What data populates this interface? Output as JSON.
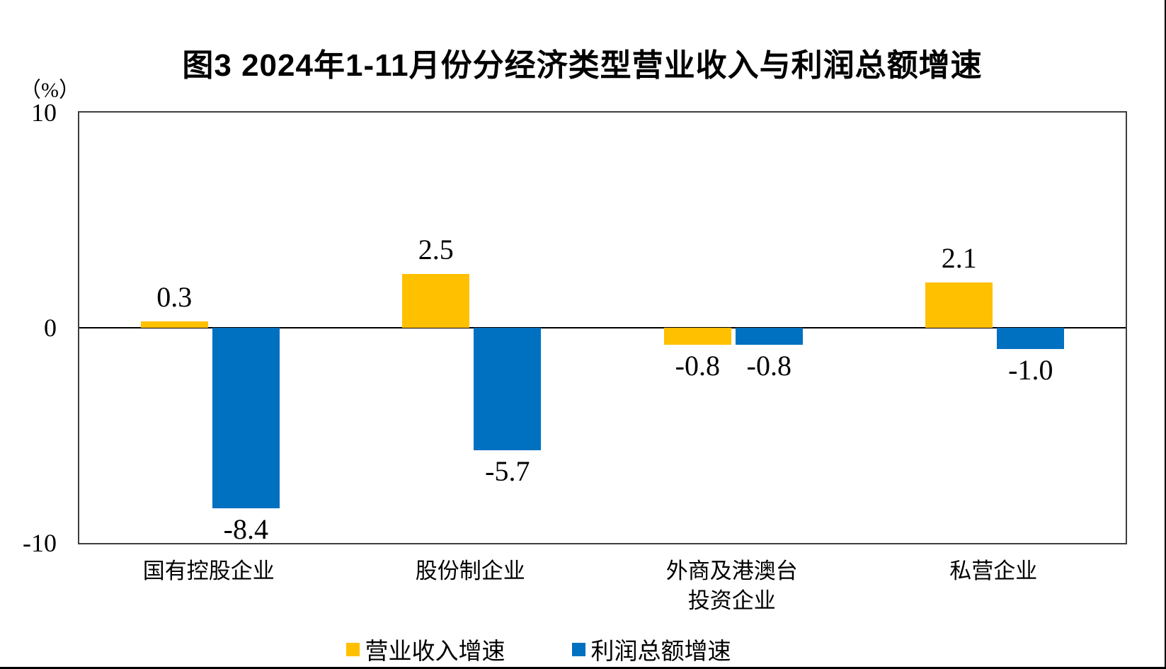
{
  "title": "图3 2024年1-11月份分经济类型营业收入与利润总额增速",
  "unit_label": "（%）",
  "chart_data": {
    "type": "bar",
    "title": "图3 2024年1-11月份分经济类型营业收入与利润总额增速",
    "categories": [
      "国有控股企业",
      "股份制企业",
      "外商及港澳台\n投资企业",
      "私营企业"
    ],
    "series": [
      {
        "name": "营业收入增速",
        "color": "#FFC000",
        "values": [
          0.3,
          2.5,
          -0.8,
          2.1
        ]
      },
      {
        "name": "利润总额增速",
        "color": "#0070C0",
        "values": [
          -8.4,
          -5.7,
          -0.8,
          -1.0
        ]
      }
    ],
    "data_labels": [
      "0.3",
      "2.5",
      "-0.8",
      "2.1",
      "-8.4",
      "-5.7",
      "-0.8",
      "-1.0"
    ],
    "ylabel": "（%）",
    "ylim": [
      -10,
      10
    ],
    "yticks": [
      10,
      0,
      -10
    ],
    "grid": false,
    "legend_position": "bottom",
    "axis_color": "#3d3d3d",
    "zero_line_color": "#000000"
  }
}
